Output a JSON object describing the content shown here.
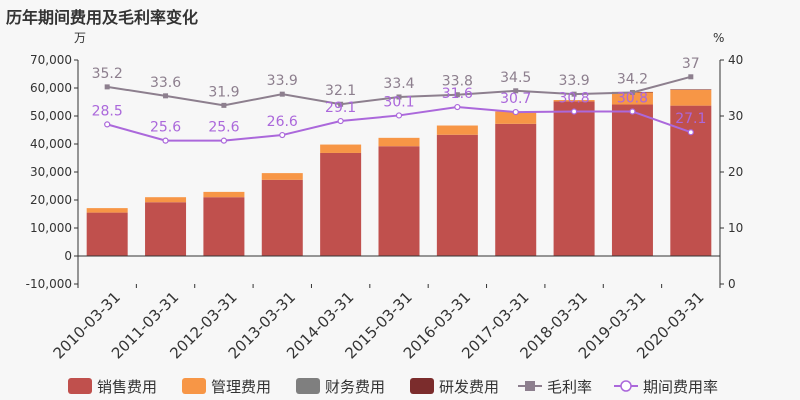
{
  "title": "历年期间费用及毛利率变化",
  "chart_data": {
    "type": "bar",
    "categories": [
      "2010-03-31",
      "2011-03-31",
      "2012-03-31",
      "2013-03-31",
      "2014-03-31",
      "2015-03-31",
      "2016-03-31",
      "2017-03-31",
      "2018-03-31",
      "2019-03-31",
      "2020-03-31"
    ],
    "left_axis": {
      "unit": "万",
      "ticks": [
        "70,000",
        "60,000",
        "50,000",
        "40,000",
        "30,000",
        "20,000",
        "10,000",
        "0",
        "-10,000"
      ],
      "ylim": [
        -10000,
        70000
      ]
    },
    "right_axis": {
      "unit": "%",
      "ticks": [
        "40",
        "30",
        "20",
        "10",
        "0"
      ],
      "ylim": [
        0,
        40
      ]
    },
    "bar_series": [
      {
        "name": "销售费用",
        "color": "#c0504d",
        "values": [
          15500,
          19200,
          21000,
          27200,
          36800,
          39200,
          43300,
          47200,
          55200,
          54100,
          53700
        ]
      },
      {
        "name": "管理费用",
        "color": "#f79646",
        "values": [
          1600,
          1800,
          1900,
          2400,
          3000,
          3000,
          3300,
          4400,
          500,
          4400,
          5700
        ]
      },
      {
        "name": "财务费用",
        "color": "#7f7f7f",
        "values": [
          0,
          0,
          0,
          0,
          0,
          0,
          0,
          0,
          0,
          0,
          0
        ]
      },
      {
        "name": "研发费用",
        "color": "#7b2c2c",
        "values": [
          0,
          0,
          0,
          0,
          0,
          0,
          0,
          0,
          0,
          100,
          100
        ]
      }
    ],
    "line_series": [
      {
        "name": "毛利率",
        "color": "#8d7f8e",
        "values": [
          35.2,
          33.6,
          31.9,
          33.9,
          32.1,
          33.4,
          33.8,
          34.5,
          33.9,
          34.2,
          37
        ],
        "labels": [
          "35.2",
          "33.6",
          "31.9",
          "33.9",
          "32.1",
          "33.4",
          "33.8",
          "34.5",
          "33.9",
          "34.2",
          "37"
        ]
      },
      {
        "name": "期间费用率",
        "color": "#ab68db",
        "values": [
          28.5,
          25.6,
          25.6,
          26.6,
          29.1,
          30.1,
          31.6,
          30.7,
          30.8,
          30.8,
          27.1
        ],
        "labels": [
          "28.5",
          "25.6",
          "25.6",
          "26.6",
          "29.1",
          "30.1",
          "31.6",
          "30.7",
          "30.8",
          "30.8",
          "27.1"
        ]
      }
    ]
  }
}
